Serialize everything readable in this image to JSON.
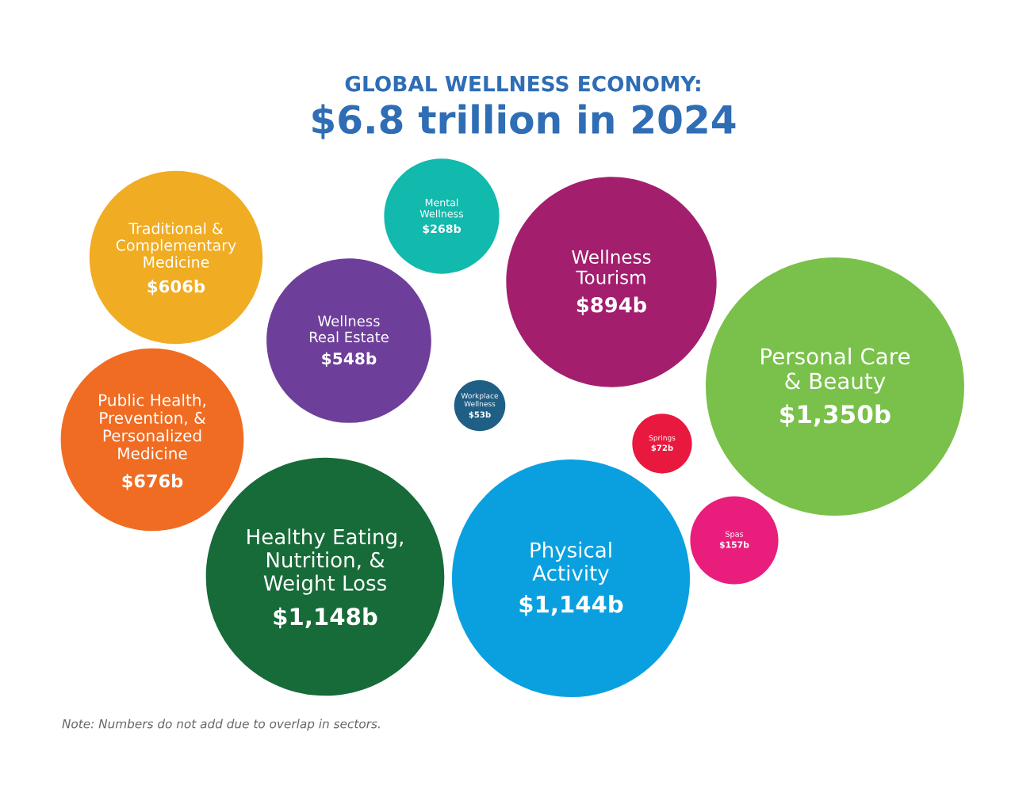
{
  "chart_data": {
    "type": "other",
    "title": "GLOBAL WELLNESS ECONOMY:",
    "subtitle": "$6.8 trillion in 2024",
    "categories": [
      "Traditional &\nComplementary\nMedicine",
      "Mental\nWellness",
      "Wellness\nTourism",
      "Personal Care\n& Beauty",
      "Wellness\nReal Estate",
      "Public Health,\nPrevention, &\nPersonalized\nMedicine",
      "Workplace\nWellness",
      "Springs",
      "Spas",
      "Healthy Eating,\nNutrition, &\nWeight Loss",
      "Physical\nActivity"
    ],
    "values": [
      606,
      268,
      894,
      1350,
      548,
      676,
      53,
      72,
      157,
      1148,
      1144
    ],
    "value_labels": [
      "$606b",
      "$268b",
      "$894b",
      "$1,350b",
      "$548b",
      "$676b",
      "$53b",
      "$72b",
      "$157b",
      "$1,148b",
      "$1,144b"
    ],
    "colors": [
      "#f0ac22",
      "#12b9ad",
      "#a31f6e",
      "#79c14a",
      "#6e3f9a",
      "#f06c22",
      "#1f5f86",
      "#e8183f",
      "#e91e7c",
      "#176b38",
      "#0aa0df"
    ],
    "annotations": [
      "Note: Numbers do not add due to overlap in sectors."
    ]
  }
}
